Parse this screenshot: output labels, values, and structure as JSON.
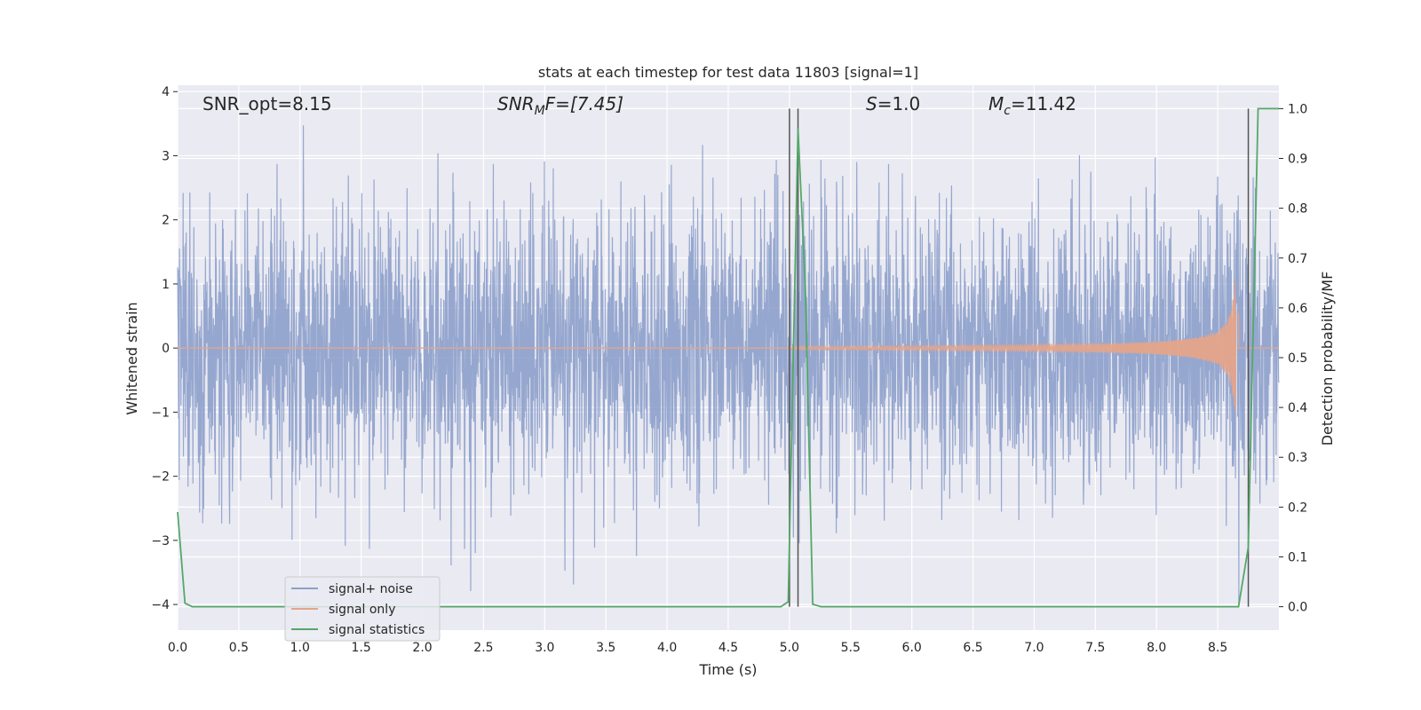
{
  "chart_data": {
    "type": "line",
    "title": "stats at each timestep for test data 11803 [signal=1]",
    "xlabel": "Time (s)",
    "ylabel_left": "Whitened strain",
    "ylabel_right": "Detection probability/MF",
    "xlim": [
      0.0,
      9.0
    ],
    "ylim_left": [
      -4.4,
      4.1
    ],
    "ylim_right": [
      -0.047,
      1.047
    ],
    "x_ticks": [
      0.0,
      0.5,
      1.0,
      1.5,
      2.0,
      2.5,
      3.0,
      3.5,
      4.0,
      4.5,
      5.0,
      5.5,
      6.0,
      6.5,
      7.0,
      7.5,
      8.0,
      8.5
    ],
    "x_tick_labels": [
      "0.0",
      "0.5",
      "1.0",
      "1.5",
      "2.0",
      "2.5",
      "3.0",
      "3.5",
      "4.0",
      "4.5",
      "5.0",
      "5.5",
      "6.0",
      "6.5",
      "7.0",
      "7.5",
      "8.0",
      "8.5"
    ],
    "y_left_ticks": [
      -4,
      -3,
      -2,
      -1,
      0,
      1,
      2,
      3,
      4
    ],
    "y_left_tick_labels": [
      "−4",
      "−3",
      "−2",
      "−1",
      "0",
      "1",
      "2",
      "3",
      "4"
    ],
    "y_right_ticks": [
      0.0,
      0.1,
      0.2,
      0.3,
      0.4,
      0.5,
      0.6,
      0.7,
      0.8,
      0.9,
      1.0
    ],
    "y_right_tick_labels": [
      "0.0",
      "0.1",
      "0.2",
      "0.3",
      "0.4",
      "0.5",
      "0.6",
      "0.7",
      "0.8",
      "0.9",
      "1.0"
    ],
    "grid": true,
    "legend_position": "lower-left",
    "annotations": {
      "snr_opt": "SNR_opt=8.15",
      "snr_mf_base": "SNR",
      "snr_mf_sub": "M",
      "snr_mf_rest": "F=[7.45]",
      "s_italic": "S",
      "s_rest": "=1.0",
      "mc_base": "M",
      "mc_sub": "c",
      "mc_rest": "=11.42"
    },
    "vertical_lines": [
      5.0,
      5.07,
      8.75
    ],
    "vertical_line_ylim_right": [
      0.0,
      1.0
    ],
    "series": [
      {
        "name": "signal+ noise",
        "axis": "left",
        "color": "#8da0cb",
        "description_values": "whitened noise, amplitude roughly within ±3.7 across all times"
      },
      {
        "name": "signal only",
        "axis": "left",
        "color": "#e5a48a",
        "chirp": {
          "start": 5.0,
          "merger": 8.65,
          "peak_amplitude": 1.4
        }
      },
      {
        "name": "signal statistics",
        "axis": "right",
        "color": "#55a868",
        "x": [
          0.0,
          0.06,
          0.12,
          0.5,
          1.0,
          2.0,
          3.0,
          4.0,
          4.93,
          4.99,
          5.07,
          5.13,
          5.19,
          5.26,
          6.0,
          7.0,
          8.0,
          8.67,
          8.75,
          8.83,
          9.0
        ],
        "y": [
          0.19,
          0.007,
          0.0,
          0.0,
          0.0,
          0.0,
          0.0,
          0.0,
          0.0,
          0.01,
          0.96,
          0.64,
          0.005,
          0.0,
          0.0,
          0.0,
          0.0,
          0.0,
          0.12,
          1.0,
          1.0
        ]
      }
    ]
  }
}
